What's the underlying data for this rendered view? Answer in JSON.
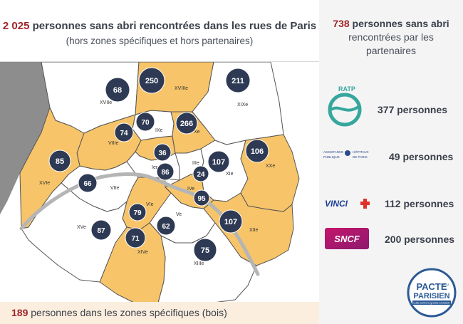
{
  "title": {
    "count": "2 025",
    "rest": " personnes sans abri rencontrées dans les rues de Paris",
    "subtitle": "(hors zones spécifiques et hors partenaires)"
  },
  "partners_header": {
    "count": "738",
    "line1_rest": " personnes sans abri",
    "line2": "rencontrées par les",
    "line3": "partenaires"
  },
  "partners": [
    {
      "name": "RATP",
      "logo": "ratp-logo",
      "count_label": "377 personnes"
    },
    {
      "name": "Assistance Publique Hôpitaux de Paris",
      "logo_lines": [
        "ASSISTANCE",
        "PUBLIQUE",
        "HÔPITAUX",
        "DE PARIS"
      ],
      "logo": "aphp-logo",
      "count_label": "49 personnes"
    },
    {
      "name": "VINCI",
      "logo": "vinci-logo",
      "count_label": "112 personnes"
    },
    {
      "name": "SNCF",
      "logo": "sncf-logo",
      "count_label": "200 personnes"
    }
  ],
  "bottom": {
    "count": "189",
    "rest": " personnes dans les zones spécifiques (bois)"
  },
  "pacte_logo": {
    "line1": "PACTE",
    "line2": "PARISIEN",
    "small": "DE LA",
    "tagline": "Lutte contre la grande exclusion"
  },
  "arrondissements": [
    {
      "id": "I",
      "label": "Ier",
      "count": "86",
      "highlighted": false
    },
    {
      "id": "II",
      "label": "IIe",
      "count": "36",
      "highlighted": true
    },
    {
      "id": "III",
      "label": "IIIe",
      "count": "24",
      "highlighted": false
    },
    {
      "id": "IV",
      "label": "IVe",
      "count": "95",
      "highlighted": true
    },
    {
      "id": "V",
      "label": "Ve",
      "count": "62",
      "highlighted": false
    },
    {
      "id": "VI",
      "label": "VIe",
      "count": "79",
      "highlighted": true
    },
    {
      "id": "VII",
      "label": "VIIe",
      "count": "66",
      "highlighted": false
    },
    {
      "id": "VIII",
      "label": "VIIIe",
      "count": "74",
      "highlighted": true
    },
    {
      "id": "IX",
      "label": "IXe",
      "count": "70",
      "highlighted": false
    },
    {
      "id": "X",
      "label": "Xe",
      "count": "266",
      "highlighted": true
    },
    {
      "id": "XI",
      "label": "XIe",
      "count": "107",
      "highlighted": false
    },
    {
      "id": "XII",
      "label": "XIIe",
      "count": "107",
      "highlighted": true
    },
    {
      "id": "XIII",
      "label": "XIIIe",
      "count": "75",
      "highlighted": false
    },
    {
      "id": "XIV",
      "label": "XIVe",
      "count": "71",
      "highlighted": true
    },
    {
      "id": "XV",
      "label": "XVe",
      "count": "87",
      "highlighted": false
    },
    {
      "id": "XVI",
      "label": "XVIe",
      "count": "85",
      "highlighted": true
    },
    {
      "id": "XVII",
      "label": "XVIIe",
      "count": "68",
      "highlighted": false
    },
    {
      "id": "XVIII",
      "label": "XVIIIe",
      "count": "250",
      "highlighted": true
    },
    {
      "id": "XIX",
      "label": "XIXe",
      "count": "211",
      "highlighted": false
    },
    {
      "id": "XX",
      "label": "XXe",
      "count": "106",
      "highlighted": true
    }
  ],
  "colors": {
    "highlight": "#f7c469",
    "plain": "#ffffff",
    "pin": "#2e3a54",
    "seine": "#b5b5b5",
    "outside": "#8d8d8d",
    "accent_red": "#a0262a",
    "panel_bg": "#f4f4f5"
  }
}
